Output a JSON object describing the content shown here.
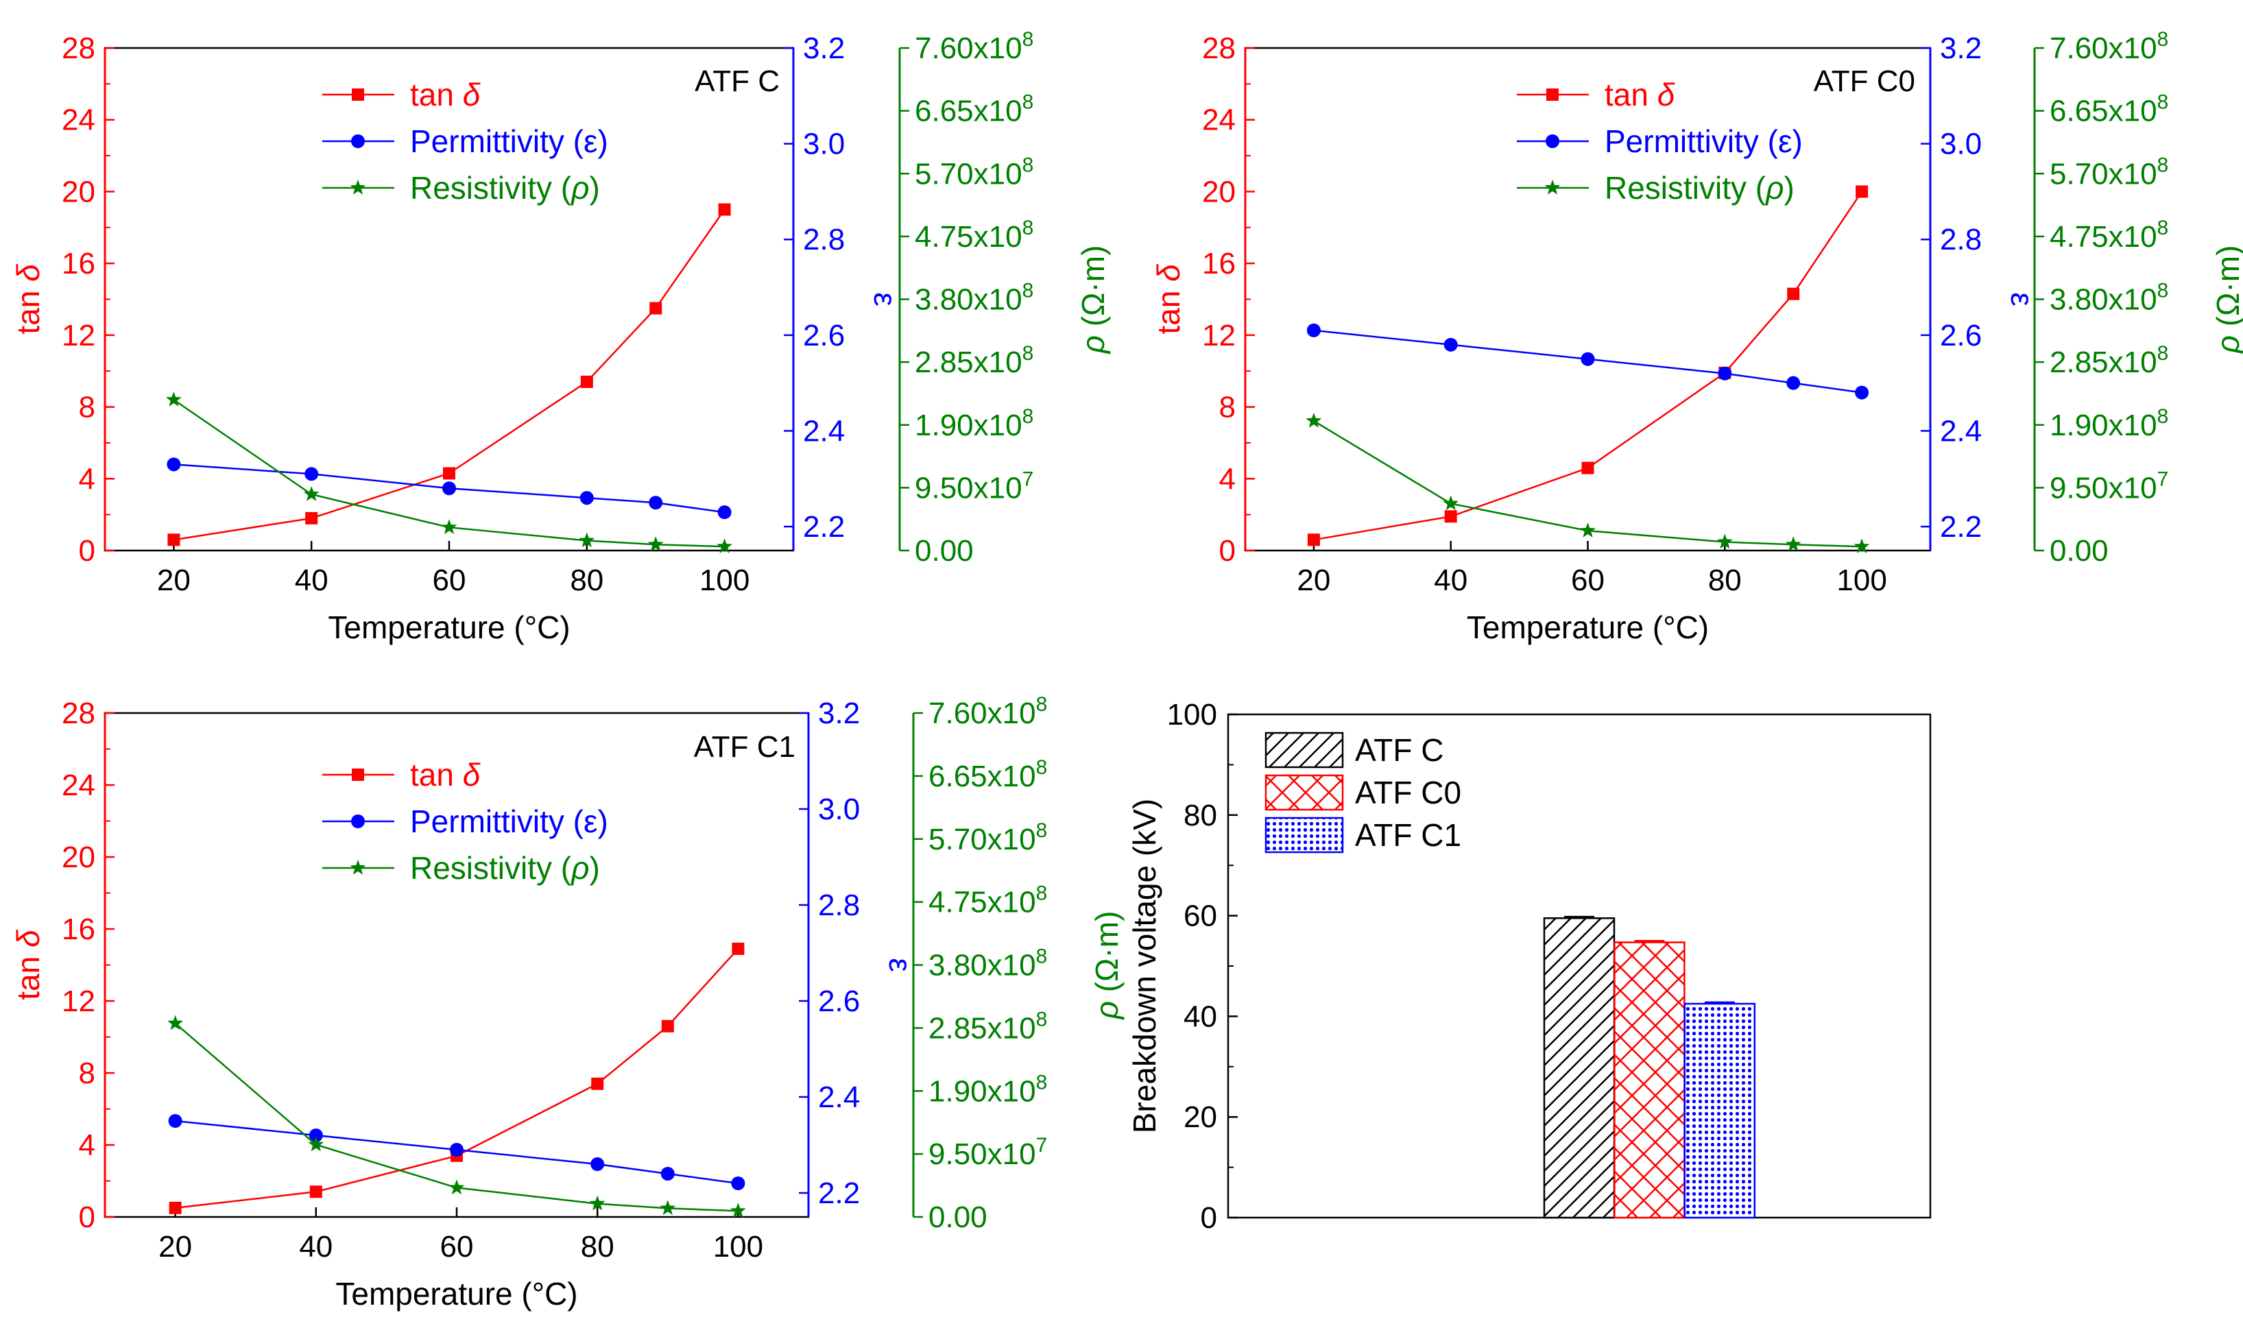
{
  "colors": {
    "tan": "#ff0000",
    "permittivity": "#0000ff",
    "resistivity": "#008000",
    "axis": "#000000",
    "bar_c": "#000000",
    "bar_c0": "#ff0000",
    "bar_c1": "#0000ff"
  },
  "chart_data": [
    {
      "type": "line",
      "panel_label": "ATF C",
      "xlabel": "Temperature (°C)",
      "x": [
        20,
        40,
        60,
        80,
        90,
        100
      ],
      "x_ticks": [
        "20",
        "40",
        "60",
        "80",
        "100"
      ],
      "xlim": [
        10,
        110
      ],
      "y_left": {
        "label_main": "tan ",
        "label_symbol": "δ",
        "ylim": [
          0,
          28
        ],
        "ticks": [
          "0",
          "4",
          "8",
          "12",
          "16",
          "20",
          "24",
          "28"
        ]
      },
      "y_right1": {
        "label": "ε",
        "ylim": [
          2.15,
          3.2
        ],
        "ticks": [
          "2.2",
          "2.4",
          "2.6",
          "2.8",
          "3.0",
          "3.2"
        ]
      },
      "y_right2": {
        "label_symbol": "ρ",
        "label_unit": " (Ω·m)",
        "ylim": [
          0,
          760000000
        ],
        "ticks": [
          "0.00",
          "9.50x10",
          "1.90x10",
          "2.85x10",
          "3.80x10",
          "4.75x10",
          "5.70x10",
          "6.65x10",
          "7.60x10"
        ],
        "tick_exps": [
          "",
          "7",
          "8",
          "8",
          "8",
          "8",
          "8",
          "8",
          "8"
        ]
      },
      "series": [
        {
          "name_main": "tan ",
          "name_symbol": "δ",
          "axis": "left",
          "marker": "square",
          "values": [
            0.6,
            1.8,
            4.3,
            9.4,
            13.5,
            19.0
          ]
        },
        {
          "name_main": "Permittivity (ε)",
          "name_symbol": "",
          "axis": "right1",
          "marker": "circle",
          "values": [
            2.33,
            2.31,
            2.28,
            2.26,
            2.25,
            2.23
          ]
        },
        {
          "name_main": "Resistivity (",
          "name_symbol": "ρ",
          "name_tail": ")",
          "axis": "right2",
          "marker": "star",
          "values": [
            228000000,
            85000000,
            35000000,
            15000000,
            9000000,
            6000000
          ]
        }
      ]
    },
    {
      "type": "line",
      "panel_label": "ATF C0",
      "xlabel": "Temperature (°C)",
      "x": [
        20,
        40,
        60,
        80,
        90,
        100
      ],
      "x_ticks": [
        "20",
        "40",
        "60",
        "80",
        "100"
      ],
      "xlim": [
        10,
        110
      ],
      "y_left": {
        "label_main": "tan ",
        "label_symbol": "δ",
        "ylim": [
          0,
          28
        ],
        "ticks": [
          "0",
          "4",
          "8",
          "12",
          "16",
          "20",
          "24",
          "28"
        ]
      },
      "y_right1": {
        "label": "ε",
        "ylim": [
          2.15,
          3.2
        ],
        "ticks": [
          "2.2",
          "2.4",
          "2.6",
          "2.8",
          "3.0",
          "3.2"
        ]
      },
      "y_right2": {
        "label_symbol": "ρ",
        "label_unit": " (Ω·m)",
        "ylim": [
          0,
          760000000
        ],
        "ticks": [
          "0.00",
          "9.50x10",
          "1.90x10",
          "2.85x10",
          "3.80x10",
          "4.75x10",
          "5.70x10",
          "6.65x10",
          "7.60x10"
        ],
        "tick_exps": [
          "",
          "7",
          "8",
          "8",
          "8",
          "8",
          "8",
          "8",
          "8"
        ]
      },
      "series": [
        {
          "name_main": "tan ",
          "name_symbol": "δ",
          "axis": "left",
          "marker": "square",
          "values": [
            0.6,
            1.9,
            4.6,
            9.9,
            14.3,
            20.0
          ]
        },
        {
          "name_main": "Permittivity (ε)",
          "name_symbol": "",
          "axis": "right1",
          "marker": "circle",
          "values": [
            2.61,
            2.58,
            2.55,
            2.52,
            2.5,
            2.48
          ]
        },
        {
          "name_main": "Resistivity (",
          "name_symbol": "ρ",
          "name_tail": ")",
          "axis": "right2",
          "marker": "star",
          "values": [
            196000000,
            71000000,
            30000000,
            13000000,
            9000000,
            6000000
          ]
        }
      ]
    },
    {
      "type": "line",
      "panel_label": "ATF C1",
      "xlabel": "Temperature (°C)",
      "x": [
        20,
        40,
        60,
        80,
        90,
        100
      ],
      "x_ticks": [
        "20",
        "40",
        "60",
        "80",
        "100"
      ],
      "xlim": [
        10,
        110
      ],
      "y_left": {
        "label_main": "tan ",
        "label_symbol": "δ",
        "ylim": [
          0,
          28
        ],
        "ticks": [
          "0",
          "4",
          "8",
          "12",
          "16",
          "20",
          "24",
          "28"
        ]
      },
      "y_right1": {
        "label": "ε",
        "ylim": [
          2.15,
          3.2
        ],
        "ticks": [
          "2.2",
          "2.4",
          "2.6",
          "2.8",
          "3.0",
          "3.2"
        ]
      },
      "y_right2": {
        "label_symbol": "ρ",
        "label_unit": " (Ω·m)",
        "ylim": [
          0,
          760000000
        ],
        "ticks": [
          "0.00",
          "9.50x10",
          "1.90x10",
          "2.85x10",
          "3.80x10",
          "4.75x10",
          "5.70x10",
          "6.65x10",
          "7.60x10"
        ],
        "tick_exps": [
          "",
          "7",
          "8",
          "8",
          "8",
          "8",
          "8",
          "8",
          "8"
        ]
      },
      "series": [
        {
          "name_main": "tan ",
          "name_symbol": "δ",
          "axis": "left",
          "marker": "square",
          "values": [
            0.5,
            1.4,
            3.4,
            7.4,
            10.6,
            14.9
          ]
        },
        {
          "name_main": "Permittivity (ε)",
          "name_symbol": "",
          "axis": "right1",
          "marker": "circle",
          "values": [
            2.35,
            2.32,
            2.29,
            2.26,
            2.24,
            2.22
          ]
        },
        {
          "name_main": "Resistivity (",
          "name_symbol": "ρ",
          "name_tail": ")",
          "axis": "right2",
          "marker": "star",
          "values": [
            292000000,
            109000000,
            44000000,
            20000000,
            13000000,
            9000000
          ]
        }
      ]
    },
    {
      "type": "bar",
      "categories": [
        "ATF C",
        "ATF C0",
        "ATF C1"
      ],
      "values": [
        59.5,
        54.7,
        42.5
      ],
      "errors": [
        0.3,
        0.3,
        0.3
      ],
      "patterns": [
        "diagonal-hatch",
        "crosshatch",
        "dots"
      ],
      "ylabel": "Breakdown voltage (kV)",
      "ylim": [
        0,
        100
      ],
      "y_ticks": [
        "0",
        "20",
        "40",
        "60",
        "80",
        "100"
      ],
      "xlim": [
        0,
        10
      ],
      "x": [
        5,
        6,
        7
      ],
      "legend_position": "top-left"
    }
  ]
}
